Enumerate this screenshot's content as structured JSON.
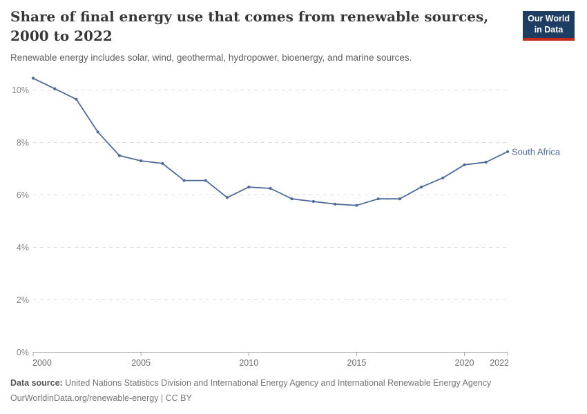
{
  "header": {
    "title": "Share of final energy use that comes from renewable sources, 2000 to 2022",
    "subtitle": "Renewable energy includes solar, wind, geothermal, hydropower, bioenergy, and marine sources.",
    "logo": {
      "line1": "Our World",
      "line2": "in Data",
      "bg_color": "#1d3d63",
      "accent_color": "#c5281c"
    }
  },
  "chart_data": {
    "type": "line",
    "title": "Share of final energy use that comes from renewable sources, 2000 to 2022",
    "x": [
      2000,
      2001,
      2002,
      2003,
      2004,
      2005,
      2006,
      2007,
      2008,
      2009,
      2010,
      2011,
      2012,
      2013,
      2014,
      2015,
      2016,
      2017,
      2018,
      2019,
      2020,
      2021,
      2022
    ],
    "series": [
      {
        "name": "South Africa",
        "color": "#4c6a9c",
        "values": [
          10.45,
          10.05,
          9.65,
          8.4,
          7.5,
          7.3,
          7.2,
          6.55,
          6.55,
          5.9,
          6.3,
          6.25,
          5.85,
          5.75,
          5.65,
          5.6,
          5.85,
          5.85,
          6.3,
          6.65,
          7.15,
          7.25,
          7.65
        ]
      }
    ],
    "xlabel": "",
    "ylabel": "",
    "ylim": [
      0,
      10.9
    ],
    "xlim": [
      2000,
      2022
    ],
    "yticks": [
      {
        "v": 0,
        "label": "0%"
      },
      {
        "v": 2,
        "label": "2%"
      },
      {
        "v": 4,
        "label": "4%"
      },
      {
        "v": 6,
        "label": "6%"
      },
      {
        "v": 8,
        "label": "8%"
      },
      {
        "v": 10,
        "label": "10%"
      }
    ],
    "xticks": [
      {
        "v": 2000,
        "label": "2000",
        "anchor": "start"
      },
      {
        "v": 2005,
        "label": "2005",
        "anchor": "middle"
      },
      {
        "v": 2010,
        "label": "2010",
        "anchor": "middle"
      },
      {
        "v": 2015,
        "label": "2015",
        "anchor": "middle"
      },
      {
        "v": 2020,
        "label": "2020",
        "anchor": "middle"
      },
      {
        "v": 2022,
        "label": "2022",
        "anchor": "end"
      }
    ],
    "grid": "horizontal-dashed",
    "legend_position": "line-end-label",
    "colors": {
      "grid": "#dcdcdc",
      "axis": "#a8a8a8",
      "y_tick_label": "#868686",
      "x_tick_label": "#6b6b6b"
    }
  },
  "footer": {
    "datasource_label": "Data source:",
    "datasource_text": " United Nations Statistics Division and International Energy Agency and International Renewable Energy Agency",
    "link_text": "OurWorldinData.org/renewable-energy | CC BY"
  }
}
